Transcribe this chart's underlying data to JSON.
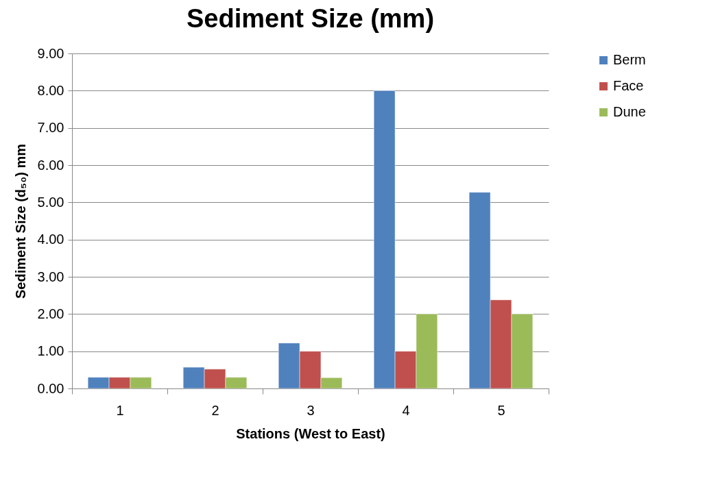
{
  "chart_data": {
    "type": "bar",
    "title": "Sediment Size (mm)",
    "xlabel": "Stations (West to East)",
    "ylabel": "Sediment Size (d₅₀) mm",
    "categories": [
      "1",
      "2",
      "3",
      "4",
      "5"
    ],
    "series": [
      {
        "name": "Berm",
        "color": "#4f81bd",
        "values": [
          0.3,
          0.57,
          1.22,
          8.0,
          5.27
        ]
      },
      {
        "name": "Face",
        "color": "#c0504d",
        "values": [
          0.3,
          0.52,
          1.0,
          1.0,
          2.38
        ]
      },
      {
        "name": "Dune",
        "color": "#9bbb59",
        "values": [
          0.3,
          0.3,
          0.29,
          2.0,
          2.0
        ]
      }
    ],
    "ylim": [
      0,
      9
    ],
    "yticks": [
      {
        "value": 0,
        "label": "0.00"
      },
      {
        "value": 1,
        "label": "1.00"
      },
      {
        "value": 2,
        "label": "2.00"
      },
      {
        "value": 3,
        "label": "3.00"
      },
      {
        "value": 4,
        "label": "4.00"
      },
      {
        "value": 5,
        "label": "5.00"
      },
      {
        "value": 6,
        "label": "6.00"
      },
      {
        "value": 7,
        "label": "7.00"
      },
      {
        "value": 8,
        "label": "8.00"
      },
      {
        "value": 9,
        "label": "9.00"
      }
    ],
    "grid": "y",
    "legend": "right"
  }
}
